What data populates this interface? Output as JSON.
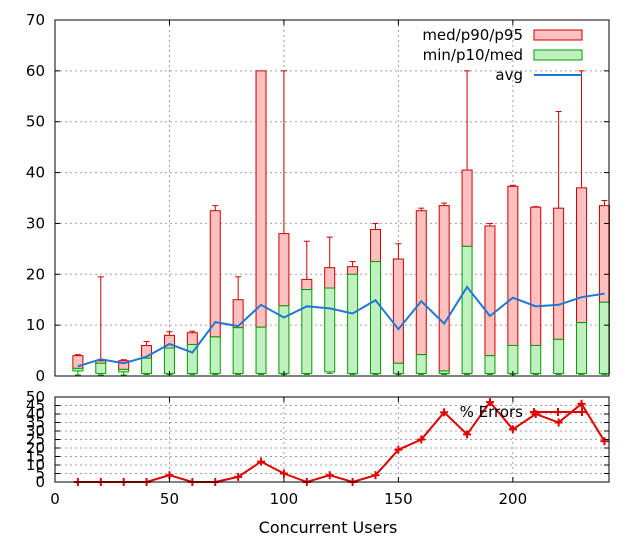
{
  "chart_data": [
    {
      "type": "bar",
      "chart": "latency",
      "legend_position": "top-right",
      "ylim": [
        0,
        70
      ],
      "xlim": [
        0,
        242
      ],
      "yticks": [
        0,
        10,
        20,
        30,
        40,
        50,
        60,
        70
      ],
      "xticks": [
        50,
        100,
        150,
        200
      ],
      "grid": true,
      "legend": [
        {
          "key": "pct_high",
          "label": "med/p90/p95",
          "color": "#ffc0c0",
          "edge": "#cc0000"
        },
        {
          "key": "pct_low",
          "label": "min/p10/med",
          "color": "#c0f0c0",
          "edge": "#00a000"
        },
        {
          "key": "avg",
          "label": "avg",
          "color": "#1f78d4"
        }
      ],
      "x": [
        10,
        20,
        30,
        40,
        50,
        60,
        70,
        80,
        90,
        100,
        110,
        120,
        130,
        140,
        150,
        160,
        170,
        180,
        190,
        200,
        210,
        220,
        230,
        240
      ],
      "min": [
        0.2,
        0.2,
        0.2,
        0.3,
        0.3,
        0.3,
        0.3,
        0.3,
        0.3,
        0.3,
        0.3,
        0.5,
        0.3,
        0.3,
        0.3,
        0.3,
        0.3,
        0.3,
        0.3,
        0.3,
        0.3,
        0.3,
        0.3,
        0.3
      ],
      "p10": [
        1.0,
        0.5,
        0.8,
        0.5,
        0.5,
        0.5,
        0.5,
        0.5,
        0.5,
        0.5,
        0.5,
        0.8,
        0.5,
        0.5,
        0.5,
        0.5,
        0.5,
        0.5,
        0.5,
        0.5,
        0.5,
        0.5,
        0.5,
        0.5
      ],
      "median": [
        1.5,
        2.5,
        1.3,
        3.5,
        5.5,
        6.2,
        7.7,
        9.5,
        9.6,
        13.8,
        17.0,
        17.3,
        20.0,
        22.5,
        2.5,
        4.2,
        1.0,
        25.5,
        4.0,
        6.0,
        6.0,
        7.2,
        10.5,
        14.5
      ],
      "p90": [
        4.0,
        3.0,
        3.0,
        6.0,
        8.0,
        8.5,
        32.5,
        15.0,
        60.0,
        28.0,
        19.0,
        21.3,
        21.5,
        28.8,
        23.0,
        32.5,
        33.5,
        40.5,
        29.5,
        37.3,
        33.2,
        33.0,
        37.0,
        33.5
      ],
      "p95": [
        4.2,
        19.5,
        3.2,
        6.8,
        8.7,
        8.8,
        33.5,
        19.5,
        60.0,
        60.0,
        26.5,
        27.3,
        22.5,
        30.0,
        26.0,
        33.0,
        34.0,
        60.0,
        30.0,
        37.5,
        33.3,
        52.0,
        60.0,
        34.5
      ],
      "avg": [
        1.9,
        3.3,
        2.5,
        3.8,
        6.3,
        4.6,
        10.6,
        9.8,
        14.0,
        11.5,
        13.7,
        13.3,
        12.3,
        14.9,
        9.2,
        14.7,
        10.3,
        17.5,
        11.8,
        15.4,
        13.7,
        14.0,
        15.5,
        16.2
      ]
    },
    {
      "type": "line",
      "chart": "errors",
      "xlabel": "Concurrent Users",
      "legend_position": "top-right",
      "ylim": [
        0,
        50
      ],
      "xlim": [
        0,
        242
      ],
      "yticks": [
        0,
        5,
        10,
        15,
        20,
        25,
        30,
        35,
        40,
        45,
        50
      ],
      "xticks": [
        0,
        50,
        100,
        150,
        200
      ],
      "grid": true,
      "series": [
        {
          "name": "% Errors",
          "color": "#e00000",
          "x": [
            10,
            20,
            30,
            40,
            50,
            60,
            70,
            80,
            90,
            100,
            110,
            120,
            130,
            140,
            150,
            160,
            170,
            180,
            190,
            200,
            210,
            220,
            230,
            240
          ],
          "values": [
            0,
            0,
            0,
            0,
            4,
            0,
            0,
            3,
            12,
            5,
            0,
            4,
            0,
            4,
            19,
            25,
            41,
            28,
            47,
            31,
            40,
            35,
            46,
            24
          ]
        }
      ]
    }
  ]
}
